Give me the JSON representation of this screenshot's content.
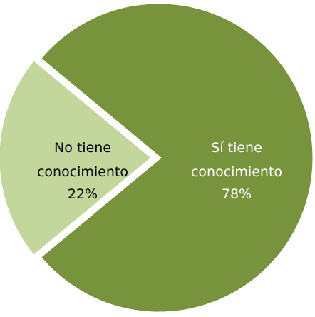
{
  "chart_data": {
    "type": "pie",
    "slices": [
      {
        "label_lines": [
          "Sí tiene",
          "conocimiento"
        ],
        "value": 78,
        "value_label": "78%",
        "color": "#77933c",
        "text_color": "#ffffff"
      },
      {
        "label_lines": [
          "No tiene",
          "conocimiento"
        ],
        "value": 22,
        "value_label": "22%",
        "color": "#c3d69b",
        "text_color": "#000000"
      }
    ],
    "legend": "none"
  }
}
